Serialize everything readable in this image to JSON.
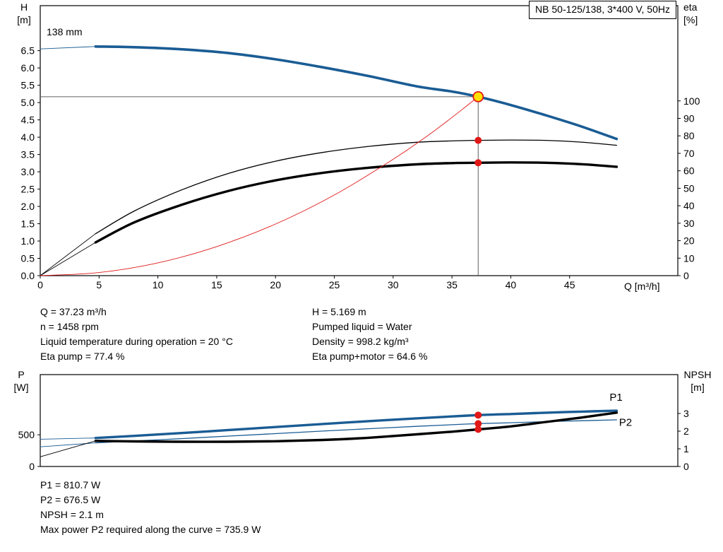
{
  "chart_data": [
    {
      "name": "qh-eta-chart",
      "type": "line",
      "title": "NB 50-125/138, 3*400 V, 50Hz",
      "annotation": "138 mm",
      "xlabel": "Q [m³/h]",
      "ylabel_left": "H",
      "ylabel_left_unit": "[m]",
      "ylabel_right": "eta",
      "ylabel_right_unit": "[%]",
      "xlim": [
        0,
        54.2
      ],
      "ylim_left": [
        0,
        7.8
      ],
      "ylim_right": [
        0,
        154.5
      ],
      "xticks": {
        "values": [
          0,
          5,
          10,
          15,
          20,
          25,
          30,
          35,
          40,
          45
        ],
        "labels": [
          "0",
          "5",
          "10",
          "15",
          "20",
          "25",
          "30",
          "35",
          "40",
          "45"
        ]
      },
      "yticks_left": {
        "values": [
          0,
          0.5,
          1,
          1.5,
          2,
          2.5,
          3,
          3.5,
          4,
          4.5,
          5,
          5.5,
          6,
          6.5
        ],
        "labels": [
          "0.0",
          "0.5",
          "1.0",
          "1.5",
          "2.0",
          "2.5",
          "3.0",
          "3.5",
          "4.0",
          "4.5",
          "5.0",
          "5.5",
          "6.0",
          "6.5"
        ]
      },
      "yticks_right": {
        "values": [
          0,
          10,
          20,
          30,
          40,
          50,
          60,
          70,
          80,
          90,
          100
        ],
        "labels": [
          "0",
          "10",
          "20",
          "30",
          "40",
          "50",
          "60",
          "70",
          "80",
          "90",
          "100"
        ]
      },
      "crosshair": {
        "x": 37.23,
        "y": 5.169,
        "axis": "left",
        "color": "#606060"
      },
      "series": [
        {
          "name": "head-curve-lead",
          "axis": "left",
          "color": "#1a5c94",
          "width": 0.9,
          "points": [
            [
              0,
              6.55
            ],
            [
              4.7,
              6.62
            ]
          ]
        },
        {
          "name": "head-curve-138mm",
          "axis": "left",
          "color": "#1a5c94",
          "width": 3.6,
          "points": [
            [
              4.7,
              6.62
            ],
            [
              8,
              6.6
            ],
            [
              12,
              6.54
            ],
            [
              16,
              6.43
            ],
            [
              20,
              6.25
            ],
            [
              24,
              6.02
            ],
            [
              28,
              5.76
            ],
            [
              32,
              5.47
            ],
            [
              35,
              5.32
            ],
            [
              37.23,
              5.169
            ],
            [
              40,
              4.93
            ],
            [
              43,
              4.63
            ],
            [
              46,
              4.31
            ],
            [
              49,
              3.95
            ]
          ]
        },
        {
          "name": "eta-pump-lead",
          "axis": "right",
          "color": "#000000",
          "width": 0.9,
          "points": [
            [
              0,
              0
            ],
            [
              4.7,
              24
            ]
          ]
        },
        {
          "name": "eta-pump-curve",
          "axis": "right",
          "color": "#000000",
          "width": 1.3,
          "points": [
            [
              4.7,
              24
            ],
            [
              8,
              37
            ],
            [
              12,
              49
            ],
            [
              16,
              58.5
            ],
            [
              20,
              65.5
            ],
            [
              24,
              70.5
            ],
            [
              28,
              74
            ],
            [
              32,
              76.3
            ],
            [
              35,
              77.1
            ],
            [
              37.23,
              77.4
            ],
            [
              40,
              77.6
            ],
            [
              43,
              77.4
            ],
            [
              46,
              76.4
            ],
            [
              49,
              74.6
            ]
          ]
        },
        {
          "name": "eta-pump-motor-lead",
          "axis": "right",
          "color": "#000000",
          "width": 0.9,
          "points": [
            [
              0,
              0
            ],
            [
              4.7,
              19
            ]
          ]
        },
        {
          "name": "eta-pump-motor-curve",
          "axis": "right",
          "color": "#000000",
          "width": 3.4,
          "points": [
            [
              4.7,
              19
            ],
            [
              8,
              30.5
            ],
            [
              12,
              40.5
            ],
            [
              16,
              48.5
            ],
            [
              20,
              54.5
            ],
            [
              24,
              58.8
            ],
            [
              28,
              61.8
            ],
            [
              32,
              63.7
            ],
            [
              35,
              64.4
            ],
            [
              37.23,
              64.6
            ],
            [
              40,
              64.8
            ],
            [
              43,
              64.6
            ],
            [
              46,
              63.8
            ],
            [
              49,
              62.3
            ]
          ]
        },
        {
          "name": "system-resistance-curve",
          "axis": "left",
          "color": "#e01818",
          "width": 0.9,
          "points": [
            [
              0,
              0
            ],
            [
              5,
              0.09
            ],
            [
              10,
              0.37
            ],
            [
              15,
              0.84
            ],
            [
              20,
              1.49
            ],
            [
              25,
              2.33
            ],
            [
              30,
              3.36
            ],
            [
              33,
              4.06
            ],
            [
              35,
              4.57
            ],
            [
              36.2,
              4.89
            ],
            [
              37.23,
              5.169
            ]
          ]
        }
      ],
      "markers": [
        {
          "name": "duty-point-marker",
          "x": 37.23,
          "v": 5.169,
          "axis": "left",
          "r": 7,
          "fill": "#ffe100",
          "stroke": "#e01818",
          "interactable": true
        },
        {
          "name": "eta-pump-marker",
          "x": 37.23,
          "v": 77.4,
          "axis": "right",
          "r": 5,
          "fill": "#e01818"
        },
        {
          "name": "eta-pump-motor-marker",
          "x": 37.23,
          "v": 64.6,
          "axis": "right",
          "r": 5,
          "fill": "#e01818"
        }
      ]
    },
    {
      "name": "power-npsh-chart",
      "type": "line",
      "ylabel_left": "P",
      "ylabel_left_unit": "[W]",
      "ylabel_right": "NPSH",
      "ylabel_right_unit": "[m]",
      "xlim": [
        0,
        54.2
      ],
      "ylim_left": [
        0,
        1450
      ],
      "ylim_right": [
        0,
        5.2
      ],
      "xticks": {
        "values": [],
        "labels": []
      },
      "yticks_left": {
        "values": [
          0,
          500
        ],
        "labels": [
          "0",
          "500"
        ]
      },
      "yticks_right": {
        "values": [
          0,
          1,
          2,
          3
        ],
        "labels": [
          "0",
          "1",
          "2",
          "3"
        ]
      },
      "series": [
        {
          "name": "p1-curve-lead",
          "axis": "left",
          "color": "#1a5c94",
          "width": 0.9,
          "points": [
            [
              0,
              430
            ],
            [
              4.7,
              450
            ]
          ]
        },
        {
          "name": "p1-curve",
          "axis": "left",
          "color": "#1a5c94",
          "width": 3.4,
          "points": [
            [
              4.7,
              450
            ],
            [
              8,
              483
            ],
            [
              12,
              528
            ],
            [
              16,
              575
            ],
            [
              20,
              622
            ],
            [
              24,
              670
            ],
            [
              28,
              716
            ],
            [
              32,
              760
            ],
            [
              35,
              790
            ],
            [
              37.23,
              810.7
            ],
            [
              40,
              828
            ],
            [
              43,
              849
            ],
            [
              46,
              866
            ],
            [
              49,
              880
            ]
          ]
        },
        {
          "name": "p2-curve-lead",
          "axis": "left",
          "color": "#1a5c94",
          "width": 0.9,
          "points": [
            [
              0,
              310
            ],
            [
              4.7,
              373
            ]
          ]
        },
        {
          "name": "p2-curve",
          "axis": "left",
          "color": "#1a5c94",
          "width": 1.3,
          "points": [
            [
              4.7,
              373
            ],
            [
              8,
              403
            ],
            [
              12,
              440
            ],
            [
              16,
              480
            ],
            [
              20,
              519
            ],
            [
              24,
              559
            ],
            [
              28,
              597
            ],
            [
              32,
              634
            ],
            [
              35,
              659
            ],
            [
              37.23,
              676.5
            ],
            [
              40,
              690
            ],
            [
              43,
              708
            ],
            [
              46,
              722
            ],
            [
              49,
              735.9
            ]
          ]
        },
        {
          "name": "npsh-curve-lead",
          "axis": "right",
          "color": "#000000",
          "width": 0.9,
          "points": [
            [
              0,
              0.55
            ],
            [
              4.7,
              1.45
            ]
          ]
        },
        {
          "name": "npsh-curve",
          "axis": "right",
          "color": "#000000",
          "width": 3.4,
          "points": [
            [
              4.7,
              1.45
            ],
            [
              8,
              1.42
            ],
            [
              12,
              1.4
            ],
            [
              16,
              1.4
            ],
            [
              20,
              1.43
            ],
            [
              24,
              1.5
            ],
            [
              28,
              1.63
            ],
            [
              32,
              1.82
            ],
            [
              35,
              1.97
            ],
            [
              37.23,
              2.1
            ],
            [
              40,
              2.27
            ],
            [
              43,
              2.52
            ],
            [
              46,
              2.77
            ],
            [
              49,
              3.05
            ]
          ]
        }
      ],
      "series_labels": [
        {
          "text": "P1",
          "x": 48.4,
          "v": 1040,
          "axis": "left",
          "color": "#1a5c94"
        },
        {
          "text": "P2",
          "x": 49.2,
          "v": 640,
          "axis": "left",
          "color": "#1a5c94"
        }
      ],
      "markers": [
        {
          "name": "p1-marker",
          "x": 37.23,
          "v": 810.7,
          "axis": "left",
          "r": 5,
          "fill": "#e01818"
        },
        {
          "name": "p2-marker",
          "x": 37.23,
          "v": 676.5,
          "axis": "left",
          "r": 5,
          "fill": "#e01818"
        },
        {
          "name": "npsh-marker",
          "x": 37.23,
          "v": 2.1,
          "axis": "right",
          "r": 5,
          "fill": "#e01818"
        }
      ]
    }
  ],
  "info_top": {
    "left": [
      "Q = 37.23 m³/h",
      "n = 1458 rpm",
      "Liquid temperature during operation = 20 °C",
      "Eta pump = 77.4 %"
    ],
    "right": [
      "H = 5.169 m",
      "Pumped liquid = Water",
      "Density = 998.2 kg/m³",
      "Eta pump+motor = 64.6 %"
    ]
  },
  "info_bottom": [
    "P1 = 810.7 W",
    "P2 = 676.5 W",
    "NPSH = 2.1 m",
    "Max power P2 required along the curve = 735.9 W"
  ]
}
